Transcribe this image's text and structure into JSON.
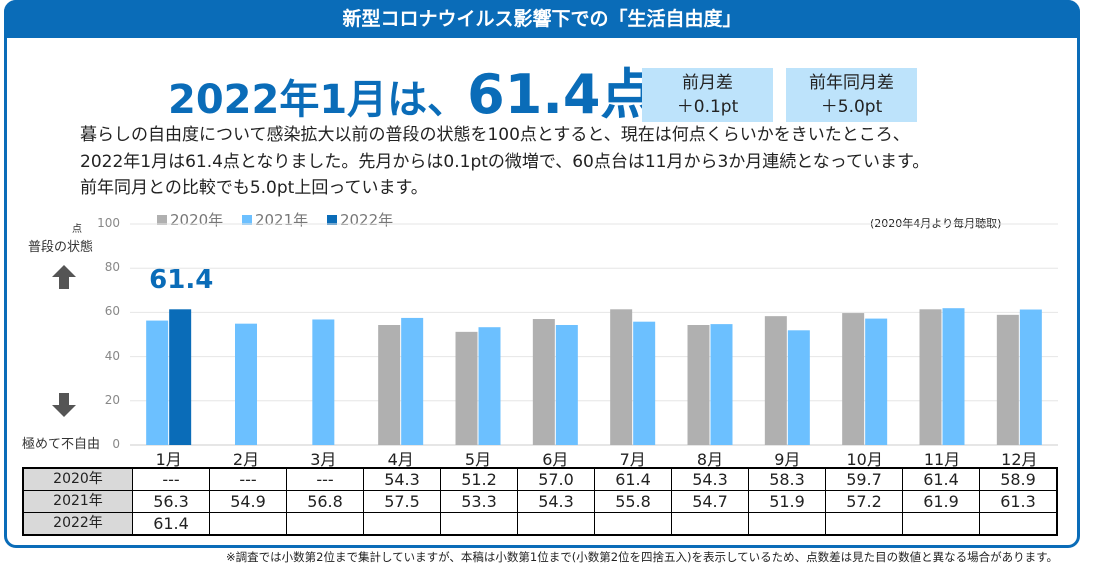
{
  "title": "新型コロナウイルス影響下での「生活自由度」",
  "headline": {
    "prefix": "2022年1月は、",
    "value": "61.4点"
  },
  "diff_boxes": [
    {
      "label": "前月差",
      "value": "＋0.1pt"
    },
    {
      "label": "前年同月差",
      "value": "＋5.0pt"
    }
  ],
  "body_lines": [
    "暮らしの自由度について感染拡大以前の普段の状態を100点とすると、現在は何点くらいかをきいたところ、",
    "2022年1月は61.4点となりました。先月からは0.1ptの微増で、60点台は11月から3か月連続となっています。",
    "前年同月との比較でも5.0pt上回っています。"
  ],
  "axis_side": {
    "unit": "点",
    "top_label": "普段の状態",
    "bottom_label": "極めて不自由"
  },
  "note": "(2020年4月より毎月聴取)",
  "footnote": "※調査では小数第2位まで集計していますが、本稿は小数第1位まで(小数第2位を四捨五入)を表示しているため、点数差は見た目の数値と異なる場合があります。",
  "colors": {
    "brand": "#0a6cb8",
    "s2020": "#b0b0b0",
    "s2021": "#6cc0ff",
    "s2022": "#0a6cb8"
  },
  "chart_data": {
    "type": "bar",
    "title": "新型コロナウイルス影響下での「生活自由度」",
    "categories": [
      "1月",
      "2月",
      "3月",
      "4月",
      "5月",
      "6月",
      "7月",
      "8月",
      "9月",
      "10月",
      "11月",
      "12月"
    ],
    "series": [
      {
        "name": "2020年",
        "values": [
          null,
          null,
          null,
          54.3,
          51.2,
          57.0,
          61.4,
          54.3,
          58.3,
          59.7,
          61.4,
          58.9
        ]
      },
      {
        "name": "2021年",
        "values": [
          56.3,
          54.9,
          56.8,
          57.5,
          53.3,
          54.3,
          55.8,
          54.7,
          51.9,
          57.2,
          61.9,
          61.3
        ]
      },
      {
        "name": "2022年",
        "values": [
          61.4,
          null,
          null,
          null,
          null,
          null,
          null,
          null,
          null,
          null,
          null,
          null
        ]
      }
    ],
    "ylim": [
      0,
      100
    ],
    "yticks": [
      "0",
      "20",
      "40",
      "60",
      "80",
      "100"
    ],
    "grid": true,
    "legend": "top-left",
    "annotation": "61.4",
    "table_rows": [
      {
        "label": "2020年",
        "cells": [
          "---",
          "---",
          "---",
          "54.3",
          "51.2",
          "57.0",
          "61.4",
          "54.3",
          "58.3",
          "59.7",
          "61.4",
          "58.9"
        ]
      },
      {
        "label": "2021年",
        "cells": [
          "56.3",
          "54.9",
          "56.8",
          "57.5",
          "53.3",
          "54.3",
          "55.8",
          "54.7",
          "51.9",
          "57.2",
          "61.9",
          "61.3"
        ]
      },
      {
        "label": "2022年",
        "cells": [
          "61.4",
          "",
          "",
          "",
          "",
          "",
          "",
          "",
          "",
          "",
          "",
          ""
        ]
      }
    ]
  }
}
